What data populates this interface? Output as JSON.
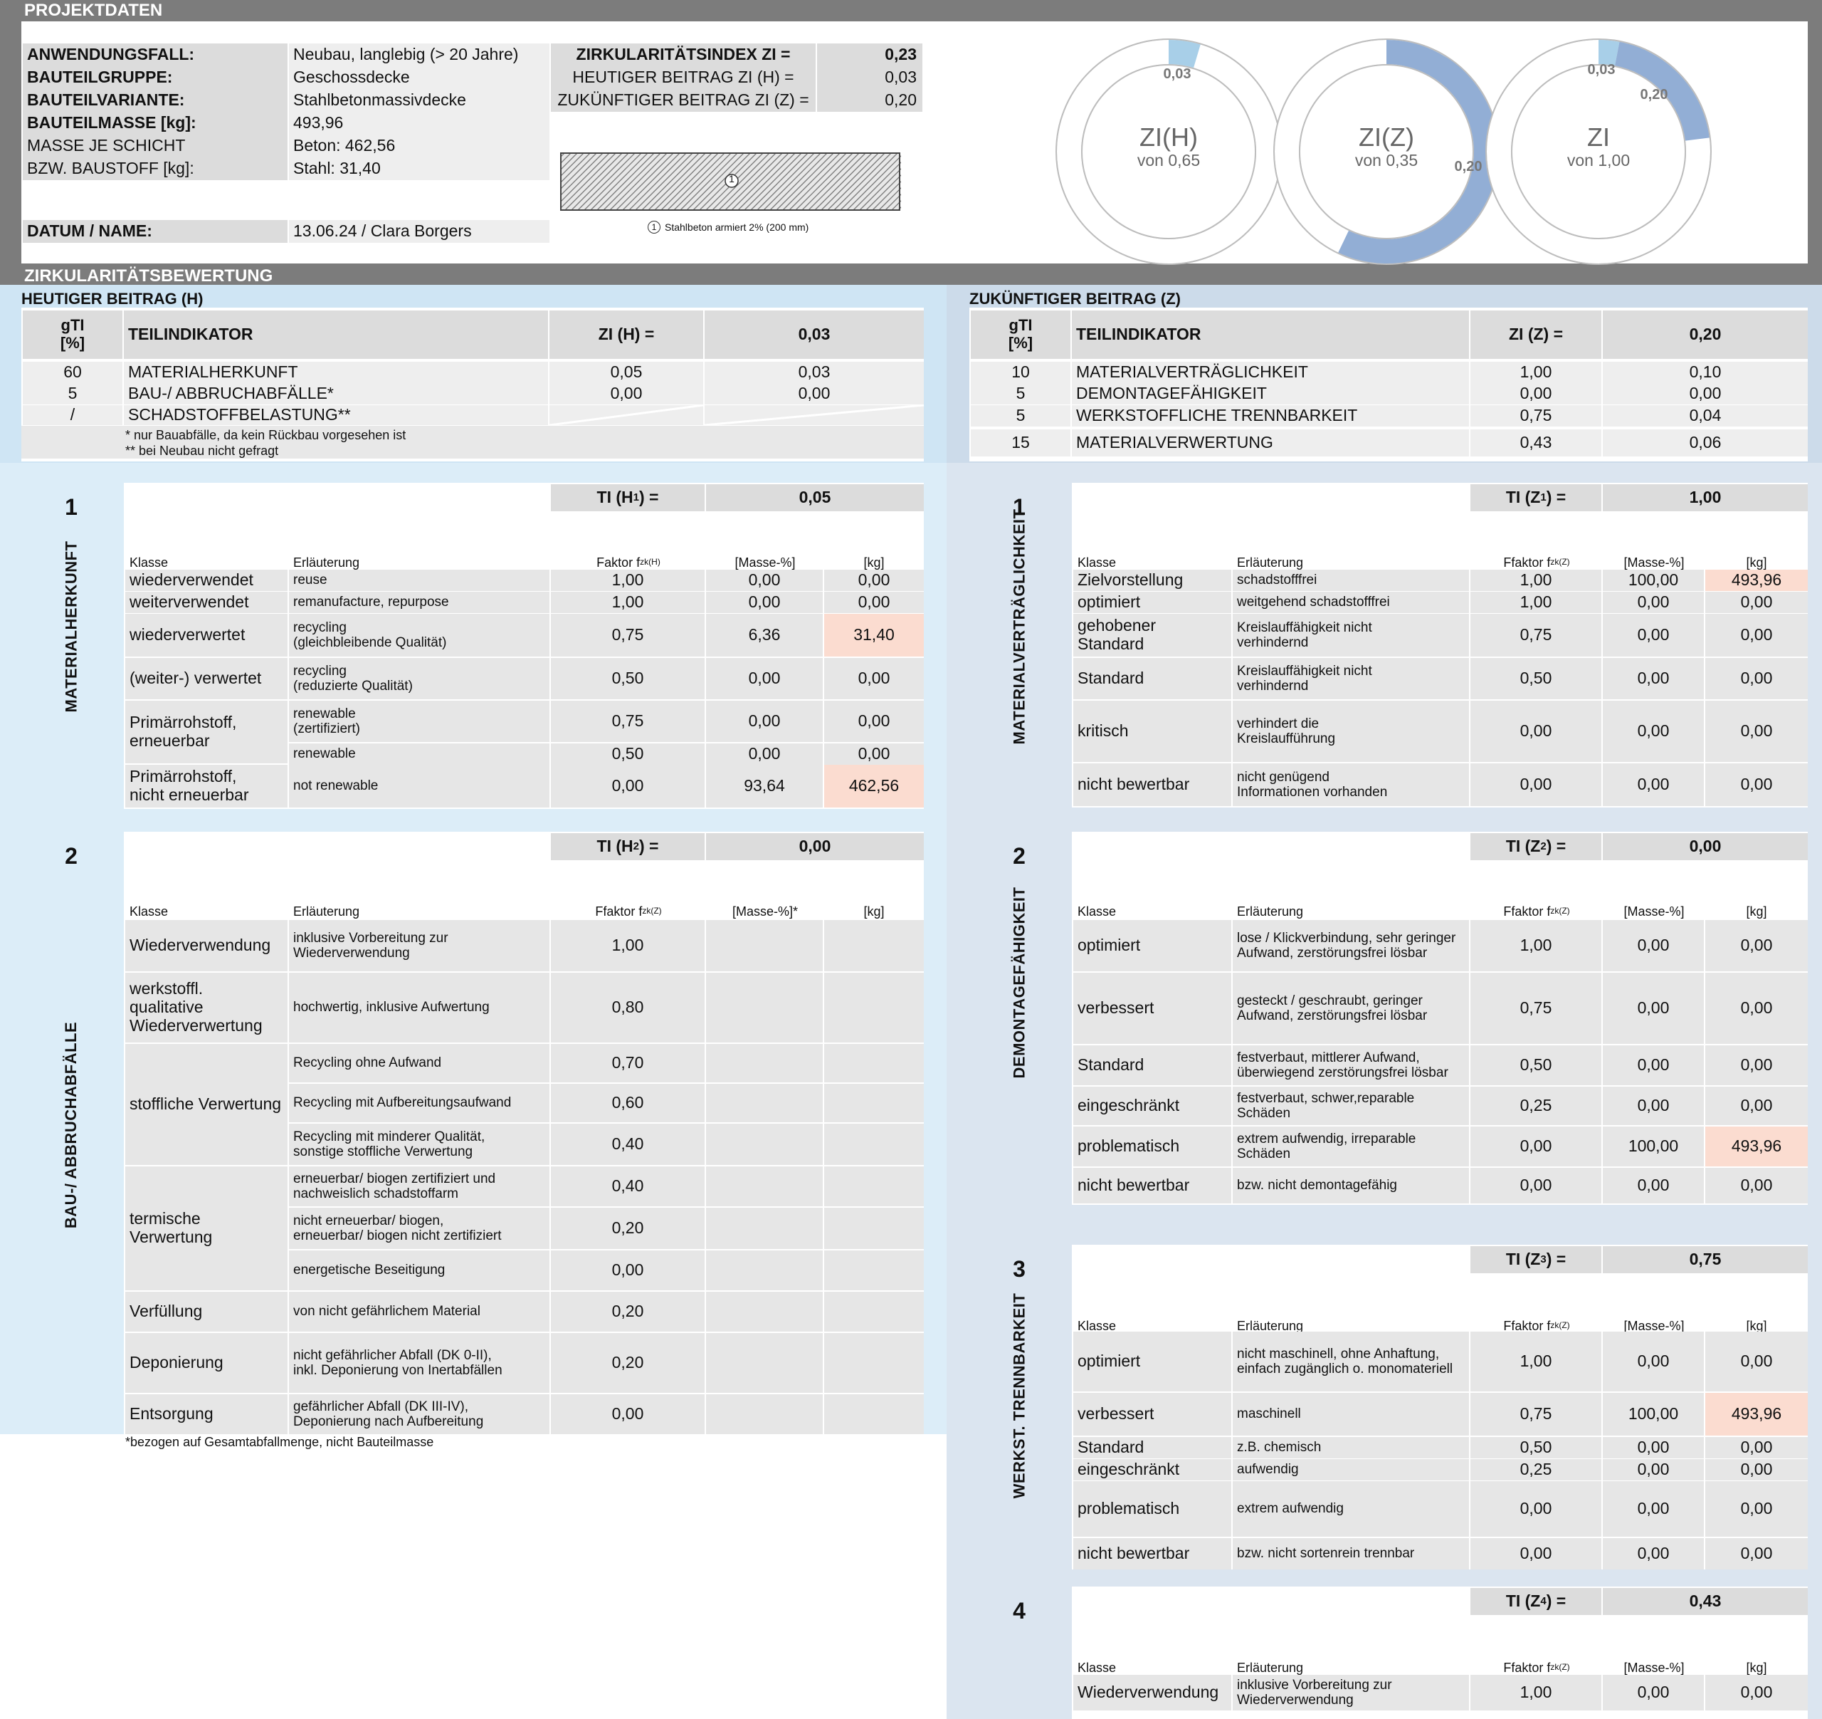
{
  "sections": {
    "projekt": "PROJEKTDATEN",
    "bewertung": "ZIRKULARITÄTSBEWERTUNG",
    "heute": "HEUTIGER BEITRAG (H)",
    "zukunft": "ZUKÜNFTIGER BEITRAG (Z)"
  },
  "projekt": {
    "labels": [
      "ANWENDUNGSFALL:",
      "BAUTEILGRUPPE:",
      "BAUTEILVARIANTE:",
      "BAUTEILMASSE [kg]:",
      "MASSE JE SCHICHT",
      "BZW. BAUSTOFF [kg]:",
      "DATUM / NAME:"
    ],
    "values": [
      "Neubau, langlebig (> 20 Jahre)",
      "Geschossdecke",
      "Stahlbetonmassivdecke",
      "493,96",
      "Beton: 462,56",
      "Stahl: 31,40",
      "13.06.24 / Clara Borgers"
    ],
    "index_labels": [
      "ZIRKULARITÄTSINDEX ZI =",
      "HEUTIGER BEITRAG ZI (H) =",
      "ZUKÜNFTIGER BEITRAG ZI (Z) ="
    ],
    "index_values": [
      "0,23",
      "0,03",
      "0,20"
    ],
    "layer_num": "1",
    "layer_caption": "Stahlbeton armiert 2% (200 mm)"
  },
  "donuts": [
    {
      "title": "ZI(H)",
      "sub": "von 0,65",
      "label": "0,03",
      "fraction": 0.046,
      "color": "#a8cfe8"
    },
    {
      "title": "ZI(Z)",
      "sub": "von 0,35",
      "label": "0,20",
      "fraction": 0.571,
      "color": "#92aed5"
    },
    {
      "title": "ZI",
      "sub": "von 1,00",
      "labels": [
        "0,03",
        "0,20"
      ],
      "fractions": [
        0.03,
        0.2
      ],
      "colors": [
        "#a8cfe8",
        "#92aed5"
      ]
    }
  ],
  "h_summary": {
    "gti": "gTI",
    "unit": "[%]",
    "teil": "TEILINDIKATOR",
    "zi_label": "ZI (H) =",
    "zi_value": "0,03",
    "rows": [
      [
        "60",
        "MATERIALHERKUNFT",
        "0,05",
        "0,03"
      ],
      [
        "5",
        "BAU-/ ABBRUCHABFÄLLE*",
        "0,00",
        "0,00"
      ],
      [
        "/",
        "SCHADSTOFFBELASTUNG**",
        "",
        ""
      ]
    ],
    "notes": [
      "*   nur Bauabfälle, da kein Rückbau vorgesehen ist",
      "** bei Neubau nicht gefragt"
    ]
  },
  "z_summary": {
    "gti": "gTI",
    "unit": "[%]",
    "teil": "TEILINDIKATOR",
    "zi_label": "ZI (Z) =",
    "zi_value": "0,20",
    "rows": [
      [
        "10",
        "MATERIALVERTRÄGLICHKEIT",
        "1,00",
        "0,10"
      ],
      [
        "5",
        "DEMONTAGEFÄHIGKEIT",
        "0,00",
        "0,00"
      ],
      [
        "5",
        "WERKSTOFFLICHE TRENNBARKEIT",
        "0,75",
        "0,04"
      ],
      [
        "15",
        "MATERIALVERWERTUNG",
        "0,43",
        "0,06"
      ]
    ]
  },
  "h1": {
    "num": "1",
    "title": "MATERIALHERKUNFT",
    "ti_label": "TI (H",
    "ti_sub": "1",
    "ti_end": ") =",
    "ti_value": "0,05",
    "hdr": [
      "Klasse",
      "Erläuterung",
      "Faktor f",
      "zk(H)",
      "[Masse-%]",
      "[kg]"
    ],
    "rows": [
      [
        "wiederverwendet",
        "reuse",
        "1,00",
        "0,00",
        "0,00"
      ],
      [
        "weiterverwendet",
        "remanufacture, repurpose",
        "1,00",
        "0,00",
        "0,00"
      ],
      [
        "wiederverwertet",
        "recycling\n(gleichbleibende Qualität)",
        "0,75",
        "6,36",
        "31,40"
      ],
      [
        "(weiter-) verwertet",
        "recycling\n(reduzierte Qualität)",
        "0,50",
        "0,00",
        "0,00"
      ],
      [
        "Primärrohstoff,\nerneuerbar",
        "renewable\n(zertifiziert)",
        "0,75",
        "0,00",
        "0,00"
      ],
      [
        "",
        "renewable",
        "0,50",
        "0,00",
        "0,00"
      ],
      [
        "Primärrohstoff,\nnicht erneuerbar",
        "not renewable",
        "0,00",
        "93,64",
        "462,56"
      ]
    ]
  },
  "h2": {
    "num": "2",
    "title": "BAU-/ ABBRUCHABFÄLLE",
    "ti_label": "TI (H",
    "ti_sub": "2",
    "ti_end": ") =",
    "ti_value": "0,00",
    "hdr": [
      "Klasse",
      "Erläuterung",
      "Ffaktor f",
      "zk(Z)",
      "[Masse-%]*",
      "[kg]"
    ],
    "rows": [
      [
        "Wiederverwendung",
        "inklusive Vorbereitung zur\nWiederverwendung",
        "1,00"
      ],
      [
        "werkstoffl.\nqualitative\nWiederverwertung",
        "hochwertig, inklusive Aufwertung",
        "0,80"
      ],
      [
        "",
        "Recycling ohne Aufwand",
        "0,70"
      ],
      [
        "stoffliche Verwertung",
        "Recycling mit Aufbereitungsaufwand",
        "0,60"
      ],
      [
        "",
        "Recycling mit minderer Qualität,\nsonstige stoffliche Verwertung",
        "0,40"
      ],
      [
        "",
        "erneuerbar/ biogen zertifiziert und\nnachweislich schadstoffarm",
        "0,40"
      ],
      [
        "termische\nVerwertung",
        "nicht erneuerbar/ biogen,\nerneuerbar/ biogen nicht zertifiziert",
        "0,20"
      ],
      [
        "",
        "energetische Beseitigung",
        "0,00"
      ],
      [
        "Verfüllung",
        "von nicht gefährlichem Material",
        "0,20"
      ],
      [
        "Deponierung",
        "nicht gefährlicher Abfall (DK 0-II),\ninkl. Deponierung von Inertabfällen",
        "0,20"
      ],
      [
        "Entsorgung",
        "gefährlicher Abfall (DK III-IV),\nDeponierung nach Aufbereitung",
        "0,00"
      ]
    ],
    "note": "*bezogen auf Gesamtabfallmenge, nicht Bauteilmasse"
  },
  "z1": {
    "num": "1",
    "title": "MATERIALVERTRÄGLICHKEIT",
    "ti_label": "TI (Z",
    "ti_sub": "1",
    "ti_end": ") =",
    "ti_value": "1,00",
    "hdr": [
      "Klasse",
      "Erläuterung",
      "Ffaktor f",
      "zk(Z)",
      "[Masse-%]",
      "[kg]"
    ],
    "rows": [
      [
        "Zielvorstellung",
        "schadstofffrei",
        "1,00",
        "100,00",
        "493,96"
      ],
      [
        "optimiert",
        "weitgehend schadstofffrei",
        "1,00",
        "0,00",
        "0,00"
      ],
      [
        "gehobener\nStandard",
        "Kreislauffähigkeit nicht\nverhindernd",
        "0,75",
        "0,00",
        "0,00"
      ],
      [
        "Standard",
        "Kreislauffähigkeit nicht\nverhindernd",
        "0,50",
        "0,00",
        "0,00"
      ],
      [
        "kritisch",
        "verhindert die\nKreislaufführung",
        "0,00",
        "0,00",
        "0,00"
      ],
      [
        "nicht bewertbar",
        "nicht genügend\nInformationen vorhanden",
        "0,00",
        "0,00",
        "0,00"
      ]
    ]
  },
  "z2": {
    "num": "2",
    "title": "DEMONTAGEFÄHIGKEIT",
    "ti_label": "TI (Z",
    "ti_sub": "2",
    "ti_end": ") =",
    "ti_value": "0,00",
    "hdr": [
      "Klasse",
      "Erläuterung",
      "Ffaktor f",
      "zk(Z)",
      "[Masse-%]",
      "[kg]"
    ],
    "rows": [
      [
        "optimiert",
        "lose / Klickverbindung, sehr geringer\nAufwand, zerstörungsfrei lösbar",
        "1,00",
        "0,00",
        "0,00"
      ],
      [
        "verbessert",
        "gesteckt / geschraubt, geringer\nAufwand, zerstörungsfrei lösbar",
        "0,75",
        "0,00",
        "0,00"
      ],
      [
        "Standard",
        "festverbaut, mittlerer Aufwand,\nüberwiegend zerstörungsfrei lösbar",
        "0,50",
        "0,00",
        "0,00"
      ],
      [
        "eingeschränkt",
        "festverbaut, schwer,reparable\nSchäden",
        "0,25",
        "0,00",
        "0,00"
      ],
      [
        "problematisch",
        "extrem aufwendig, irreparable\nSchäden",
        "0,00",
        "100,00",
        "493,96"
      ],
      [
        "nicht bewertbar",
        "bzw. nicht demontagefähig",
        "0,00",
        "0,00",
        "0,00"
      ]
    ]
  },
  "z3": {
    "num": "3",
    "title": "WERKST. TRENNBARKEIT",
    "ti_label": "TI (Z",
    "ti_sub": "3",
    "ti_end": ") =",
    "ti_value": "0,75",
    "hdr": [
      "Klasse",
      "Erläuterung",
      "Ffaktor f",
      "zk(Z)",
      "[Masse-%]",
      "[kg]"
    ],
    "rows": [
      [
        "optimiert",
        "nicht maschinell, ohne Anhaftung,\neinfach zugänglich o. monomateriell",
        "1,00",
        "0,00",
        "0,00"
      ],
      [
        "verbessert",
        "maschinell",
        "0,75",
        "100,00",
        "493,96"
      ],
      [
        "Standard",
        "z.B. chemisch",
        "0,50",
        "0,00",
        "0,00"
      ],
      [
        "eingeschränkt",
        "aufwendig",
        "0,25",
        "0,00",
        "0,00"
      ],
      [
        "problematisch",
        "extrem aufwendig",
        "0,00",
        "0,00",
        "0,00"
      ],
      [
        "nicht bewertbar",
        "bzw. nicht sortenrein trennbar",
        "0,00",
        "0,00",
        "0,00"
      ]
    ]
  },
  "z4": {
    "num": "4",
    "ti_label": "TI (Z",
    "ti_sub": "4",
    "ti_end": ") =",
    "ti_value": "0,43",
    "hdr": [
      "Klasse",
      "Erläuterung",
      "Ffaktor f",
      "zk(Z)",
      "[Masse-%]",
      "[kg]"
    ],
    "rows": [
      [
        "Wiederverwendung",
        "inklusive Vorbereitung zur\nWiederverwendung",
        "1,00",
        "0,00",
        "0,00"
      ]
    ]
  }
}
